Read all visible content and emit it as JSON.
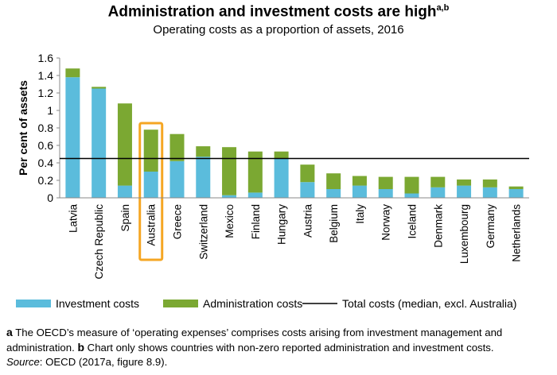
{
  "chart_data": {
    "type": "bar",
    "stacked": true,
    "title": "Administration and investment costs are high",
    "title_superscript": "a,b",
    "subtitle": "Operating costs as a proportion of assets, 2016",
    "ylabel": "Per cent of assets",
    "xlabel": "",
    "ylim": [
      0,
      1.6
    ],
    "yticks": [
      "0",
      "0.2",
      "0.4",
      "0.6",
      "0.8",
      "1",
      "1.2",
      "1.4",
      "1.6"
    ],
    "grid": false,
    "legend_position": "bottom",
    "highlighted_category": "Australia",
    "categories": [
      "Latvia",
      "Czech Republic",
      "Spain",
      "Australia",
      "Greece",
      "Switzerland",
      "Mexico",
      "Finland",
      "Hungary",
      "Austria",
      "Belgium",
      "Italy",
      "Norway",
      "Iceland",
      "Denmark",
      "Luxembourg",
      "Germany",
      "Netherlands"
    ],
    "series": [
      {
        "name": "Investment costs",
        "color": "#5bbcdc",
        "values": [
          1.38,
          1.25,
          0.14,
          0.3,
          0.42,
          0.47,
          0.03,
          0.06,
          0.45,
          0.18,
          0.1,
          0.14,
          0.1,
          0.05,
          0.12,
          0.14,
          0.12,
          0.1
        ]
      },
      {
        "name": "Administration costs",
        "color": "#7ba832",
        "values": [
          0.1,
          0.02,
          0.94,
          0.48,
          0.31,
          0.12,
          0.55,
          0.47,
          0.08,
          0.2,
          0.18,
          0.11,
          0.14,
          0.19,
          0.12,
          0.07,
          0.09,
          0.03
        ]
      }
    ],
    "reference_line": {
      "name": "Total costs (median, excl. Australia)",
      "value": 0.45,
      "color": "#000000"
    },
    "highlight_color": "#f5a623"
  },
  "notes": {
    "a_marker": "a",
    "a_text": "The OECD’s measure of ‘operating expenses’ comprises costs arising from investment management and administration.",
    "b_marker": "b",
    "b_text": "Chart only shows countries with non-zero reported administration and investment costs.",
    "source_label": "Source",
    "source_text": ": OECD (2017a, figure 8.9)."
  }
}
